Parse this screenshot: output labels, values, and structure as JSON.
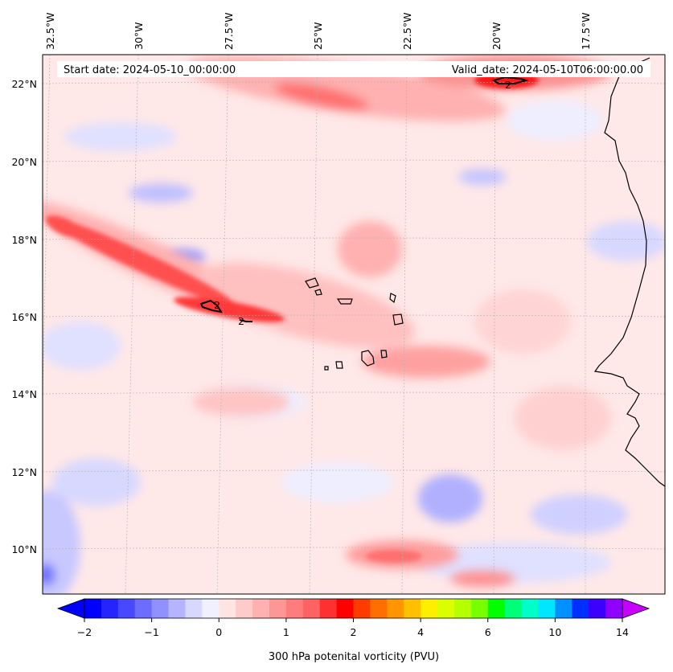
{
  "header": {
    "start_date": "Start date: 2024-05-10_00:00:00",
    "valid_date": "Valid_date: 2024-05-10T06:00:00.00"
  },
  "axes": {
    "lon_ticks": [
      "32.5°W",
      "30°W",
      "27.5°W",
      "25°W",
      "22.5°W",
      "20°W",
      "17.5°W"
    ],
    "lat_ticks": [
      "22°N",
      "20°N",
      "18°N",
      "16°N",
      "14°N",
      "12°N",
      "10°N"
    ]
  },
  "colorbar": {
    "label": "300 hPa potenital vorticity (PVU)",
    "tick_labels": [
      "−2",
      "−1",
      "0",
      "1",
      "2",
      "4",
      "6",
      "10",
      "14"
    ],
    "colors": [
      "#0000ff",
      "#2424ff",
      "#4848ff",
      "#6c6cff",
      "#9090ff",
      "#b4b4ff",
      "#d8d8ff",
      "#f0f0ff",
      "#ffe4e4",
      "#ffcaca",
      "#ffb0b0",
      "#ff9696",
      "#ff7c7c",
      "#ff6262",
      "#ff3030",
      "#ff0000",
      "#ff3c00",
      "#ff6e00",
      "#ff9600",
      "#ffc000",
      "#ffee00",
      "#dcff00",
      "#b4ff00",
      "#78ff00",
      "#00ff00",
      "#00ff78",
      "#00ffc8",
      "#00e6ff",
      "#0090ff",
      "#0030ff",
      "#3c00ff",
      "#9000ff"
    ]
  },
  "contour_labels": [
    "2",
    "2",
    "2"
  ],
  "map_features": {
    "region": "Eastern Atlantic / Cape Verde / West Africa coast",
    "field": "300 hPa potential vorticity",
    "contour_level": 2
  }
}
